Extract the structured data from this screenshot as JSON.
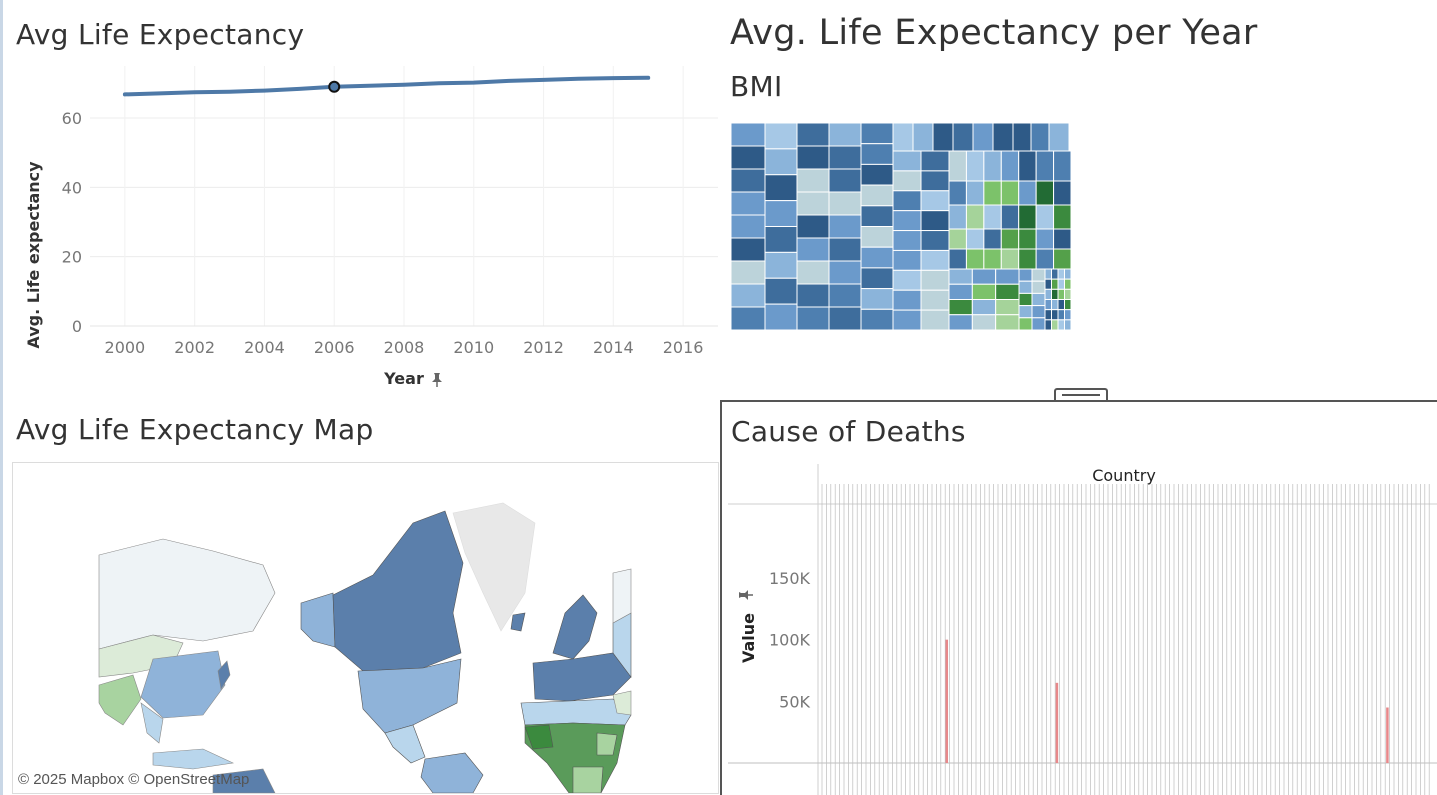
{
  "dashboard": {
    "line_chart": {
      "title": "Avg Life Expectancy",
      "chart_data": {
        "type": "line",
        "xlabel": "Year",
        "ylabel": "Avg. Life expectancy",
        "x": [
          2000,
          2001,
          2002,
          2003,
          2004,
          2005,
          2006,
          2007,
          2008,
          2009,
          2010,
          2011,
          2012,
          2013,
          2014,
          2015
        ],
        "series": [
          {
            "values": [
              66.8,
              67.1,
              67.4,
              67.6,
              67.9,
              68.4,
              69.0,
              69.3,
              69.6,
              70.0,
              70.2,
              70.7,
              71.0,
              71.3,
              71.5,
              71.6
            ]
          }
        ],
        "xlim": [
          1999,
          2017
        ],
        "ylim": [
          0,
          75
        ],
        "x_ticks": [
          "2000",
          "2002",
          "2004",
          "2006",
          "2008",
          "2010",
          "2012",
          "2014",
          "2016"
        ],
        "y_ticks": [
          "0",
          "20",
          "40",
          "60"
        ],
        "highlighted_x": 2006,
        "line_color": "#4e79a7",
        "grid": true
      }
    },
    "treemap": {
      "header_title": "Avg. Life Expectancy per Year",
      "title": "BMI",
      "palette": [
        "#2e5a87",
        "#3e6d9c",
        "#4e7fb0",
        "#6b9acb",
        "#8bb4da",
        "#a6c8e6",
        "#bcd3da",
        "#a5d39a",
        "#7cc26a",
        "#54a04a",
        "#3b8a3e",
        "#226b34"
      ]
    },
    "map": {
      "title": "Avg Life Expectancy Map",
      "attribution": "© 2025 Mapbox © OpenStreetMap",
      "colors": {
        "high": "#5b7fab",
        "mid": "#8fb3d9",
        "low_mid": "#b9d6ec",
        "pale": "#eef3f6",
        "greenland": "#e8e8e8",
        "low": "#5a9b5a",
        "light_green": "#a8d3a0"
      }
    },
    "deaths_chart": {
      "title": "Cause of Deaths",
      "chart_data": {
        "type": "bar",
        "column_header": "Country",
        "ylabel": "Value",
        "y_ticks": [
          "50K",
          "100K",
          "150K"
        ],
        "y_tick_values": [
          50000,
          100000,
          150000
        ],
        "highlight_bars": [
          {
            "position": 0.21,
            "value": 100000
          },
          {
            "position": 0.39,
            "value": 65000
          },
          {
            "position": 0.93,
            "value": 45000
          }
        ],
        "bar_color": "#e8888a",
        "gridline_color": "#bdbdbd"
      }
    }
  }
}
